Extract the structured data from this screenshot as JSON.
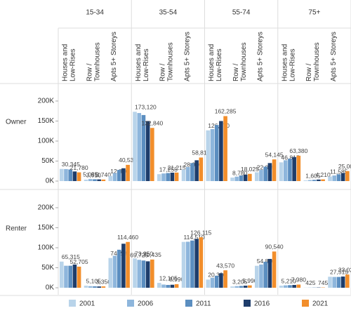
{
  "chart_data": {
    "type": "bar",
    "rows": [
      "Owner",
      "Renter"
    ],
    "columns": [
      "15-34",
      "35-54",
      "55-74",
      "75+"
    ],
    "sub_categories": [
      [
        "Houses and",
        "Low-Rises"
      ],
      [
        "Row /",
        "Townhouses"
      ],
      [
        "Apts 5+ Storeys"
      ]
    ],
    "legend": [
      {
        "name": "2001",
        "color": "#b9d4ea"
      },
      {
        "name": "2006",
        "color": "#8eb6dc"
      },
      {
        "name": "2011",
        "color": "#5b8ec0"
      },
      {
        "name": "2016",
        "color": "#1e3d6b"
      },
      {
        "name": "2021",
        "color": "#f28e2b"
      }
    ],
    "ylim": [
      -17500,
      242000
    ],
    "yticks": [
      {
        "value": 0,
        "label": "0K"
      },
      {
        "value": 50000,
        "label": "50K"
      },
      {
        "value": 100000,
        "label": "100K"
      },
      {
        "value": 150000,
        "label": "150K"
      },
      {
        "value": 200000,
        "label": "200K"
      }
    ],
    "values": [
      [
        [
          [
            30345,
            30000,
            29000,
            24000,
            21780
          ],
          [
            3510,
            5085,
            4500,
            4200,
            3740
          ],
          [
            12850,
            20000,
            28000,
            32000,
            40535
          ]
        ],
        [
          [
            173120,
            170000,
            165000,
            150000,
            132840
          ],
          [
            17255,
            19000,
            20000,
            21000,
            21215
          ],
          [
            28970,
            35000,
            45000,
            52000,
            58815
          ]
        ],
        [
          [
            126670,
            130000,
            140000,
            150000,
            162285
          ],
          [
            8780,
            11000,
            14000,
            16000,
            18025
          ],
          [
            22025,
            28000,
            36000,
            45000,
            54145
          ]
        ],
        [
          [
            46815,
            52000,
            56000,
            60000,
            63380
          ],
          [
            1605,
            2500,
            3000,
            3800,
            4210
          ],
          [
            11585,
            14000,
            17000,
            20000,
            25000
          ]
        ]
      ],
      [
        [
          [
            65315,
            55000,
            55000,
            58000,
            52705
          ],
          [
            5105,
            4000,
            3500,
            3200,
            3350
          ],
          [
            74295,
            80000,
            95000,
            110000,
            114460
          ]
        ],
        [
          [
            73250,
            69725,
            68000,
            66000,
            70435
          ],
          [
            12105,
            8000,
            7000,
            7500,
            8990
          ],
          [
            114510,
            115000,
            118000,
            122000,
            126115
          ]
        ],
        [
          [
            20390,
            25000,
            30000,
            36000,
            43570
          ],
          [
            3205,
            4000,
            4500,
            5200,
            5990
          ],
          [
            54870,
            58000,
            65000,
            72000,
            90540
          ]
        ],
        [
          [
            5210,
            6000,
            6500,
            7000,
            7980
          ],
          [
            425,
            500,
            600,
            700,
            745
          ],
          [
            27515,
            27000,
            27000,
            28000,
            33025
          ]
        ]
      ]
    ],
    "value_labels": [
      [
        [
          [
            "30,345",
            null,
            null,
            null,
            "21,780"
          ],
          [
            "3,510",
            "5,085",
            null,
            null,
            "3,740"
          ],
          [
            "12,850",
            null,
            null,
            null,
            "40,535"
          ]
        ],
        [
          [
            "173,120",
            null,
            null,
            null,
            "132,840"
          ],
          [
            "17,255",
            null,
            null,
            null,
            "21,215"
          ],
          [
            "28,970",
            null,
            null,
            null,
            "58,815"
          ]
        ],
        [
          [
            "126,670",
            null,
            null,
            null,
            "162,285"
          ],
          [
            "8,780",
            null,
            null,
            null,
            "18,025"
          ],
          [
            "22,025",
            null,
            null,
            null,
            "54,145"
          ]
        ],
        [
          [
            "46,815",
            null,
            null,
            null,
            "63,380"
          ],
          [
            "1,605",
            null,
            null,
            null,
            "4,210"
          ],
          [
            "11,585",
            null,
            null,
            null,
            "25,000"
          ]
        ]
      ],
      [
        [
          [
            "65,315",
            null,
            null,
            null,
            "52,705"
          ],
          [
            "5,105",
            null,
            null,
            null,
            "3,350"
          ],
          [
            "74,295",
            null,
            null,
            null,
            "114,460"
          ]
        ],
        [
          [
            "73,250",
            "69,725",
            null,
            null,
            "70,435"
          ],
          [
            "12,105",
            null,
            null,
            null,
            "8,990"
          ],
          [
            "114,510",
            null,
            null,
            null,
            "126,115"
          ]
        ],
        [
          [
            "20,390",
            null,
            null,
            null,
            "43,570"
          ],
          [
            "3,205",
            null,
            null,
            null,
            "5,990"
          ],
          [
            "54,870",
            null,
            null,
            null,
            "90,540"
          ]
        ],
        [
          [
            "5,210",
            null,
            null,
            null,
            "7,980"
          ],
          [
            "425",
            null,
            null,
            null,
            "745"
          ],
          [
            "27,515",
            null,
            null,
            null,
            "33,025"
          ]
        ]
      ]
    ]
  }
}
